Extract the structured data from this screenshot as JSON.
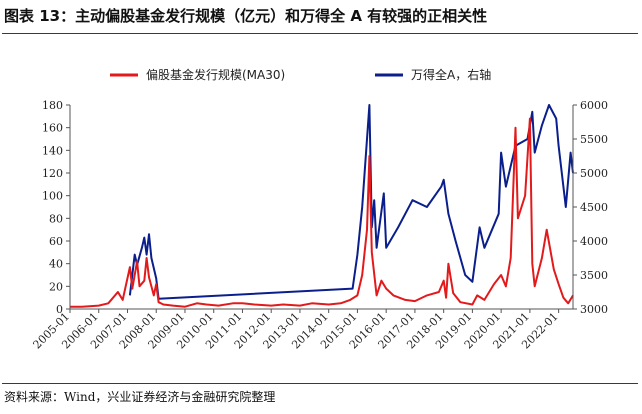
{
  "figure": {
    "title": "图表 13：主动偏股基金发行规模（亿元）和万得全 A 有较强的正相关性",
    "source": "资料来源：Wind，兴业证券经济与金融研究院整理"
  },
  "colors": {
    "red": "#e31a1c",
    "blue": "#0b1f8c",
    "rule": "#7f1d1d"
  },
  "chart_data": {
    "type": "line",
    "x_ticks": [
      "2005-01",
      "2006-01",
      "2007-01",
      "2008-01",
      "2009-01",
      "2010-01",
      "2011-01",
      "2012-01",
      "2013-01",
      "2014-01",
      "2015-01",
      "2016-01",
      "2017-01",
      "2018-01",
      "2019-01",
      "2020-01",
      "2021-01",
      "2022-01"
    ],
    "x_range": [
      "2005-01",
      "2022-07"
    ],
    "y_left": {
      "range": [
        0,
        180
      ],
      "ticks": [
        0,
        20,
        40,
        60,
        80,
        100,
        120,
        140,
        160,
        180
      ]
    },
    "y_right": {
      "range": [
        3000,
        6000
      ],
      "ticks": [
        3000,
        3500,
        4000,
        4500,
        5000,
        5500,
        6000
      ]
    },
    "legend_placement": "top",
    "grid": false,
    "series": [
      {
        "name": "偏股基金发行规模(MA30)",
        "axis": "left",
        "color": "#e31a1c",
        "points": [
          [
            "2005-01",
            2
          ],
          [
            "2005-06",
            2
          ],
          [
            "2006-01",
            3
          ],
          [
            "2006-05",
            5
          ],
          [
            "2006-09",
            15
          ],
          [
            "2006-11",
            8
          ],
          [
            "2007-02",
            37
          ],
          [
            "2007-03",
            18
          ],
          [
            "2007-05",
            42
          ],
          [
            "2007-06",
            20
          ],
          [
            "2007-08",
            25
          ],
          [
            "2007-09",
            45
          ],
          [
            "2007-10",
            28
          ],
          [
            "2007-12",
            12
          ],
          [
            "2008-01",
            22
          ],
          [
            "2008-02",
            6
          ],
          [
            "2008-04",
            4
          ],
          [
            "2008-08",
            3
          ],
          [
            "2009-01",
            2
          ],
          [
            "2009-06",
            5
          ],
          [
            "2009-10",
            4
          ],
          [
            "2010-03",
            3
          ],
          [
            "2010-09",
            5
          ],
          [
            "2011-01",
            5
          ],
          [
            "2011-06",
            4
          ],
          [
            "2012-01",
            3
          ],
          [
            "2012-06",
            4
          ],
          [
            "2013-01",
            3
          ],
          [
            "2013-06",
            5
          ],
          [
            "2014-01",
            4
          ],
          [
            "2014-06",
            5
          ],
          [
            "2014-10",
            8
          ],
          [
            "2015-01",
            12
          ],
          [
            "2015-03",
            30
          ],
          [
            "2015-05",
            70
          ],
          [
            "2015-06",
            135
          ],
          [
            "2015-07",
            50
          ],
          [
            "2015-09",
            12
          ],
          [
            "2015-11",
            25
          ],
          [
            "2016-01",
            18
          ],
          [
            "2016-04",
            12
          ],
          [
            "2016-09",
            8
          ],
          [
            "2017-01",
            7
          ],
          [
            "2017-06",
            12
          ],
          [
            "2017-11",
            15
          ],
          [
            "2018-01",
            25
          ],
          [
            "2018-02",
            10
          ],
          [
            "2018-03",
            40
          ],
          [
            "2018-05",
            14
          ],
          [
            "2018-08",
            6
          ],
          [
            "2019-01",
            4
          ],
          [
            "2019-03",
            12
          ],
          [
            "2019-06",
            8
          ],
          [
            "2019-10",
            22
          ],
          [
            "2020-01",
            30
          ],
          [
            "2020-03",
            20
          ],
          [
            "2020-05",
            45
          ],
          [
            "2020-07",
            160
          ],
          [
            "2020-08",
            80
          ],
          [
            "2020-11",
            100
          ],
          [
            "2021-01",
            168
          ],
          [
            "2021-02",
            40
          ],
          [
            "2021-03",
            20
          ],
          [
            "2021-06",
            45
          ],
          [
            "2021-08",
            70
          ],
          [
            "2021-11",
            35
          ],
          [
            "2022-01",
            22
          ],
          [
            "2022-03",
            10
          ],
          [
            "2022-05",
            5
          ],
          [
            "2022-07",
            12
          ]
        ]
      },
      {
        "name": "万得全A，右轴",
        "axis": "right",
        "color": "#0b1f8c",
        "points": [
          [
            "2007-02",
            3200
          ],
          [
            "2007-04",
            3800
          ],
          [
            "2007-05",
            3650
          ],
          [
            "2007-07",
            3900
          ],
          [
            "2007-08",
            4050
          ],
          [
            "2007-09",
            3800
          ],
          [
            "2007-10",
            4100
          ],
          [
            "2007-11",
            3750
          ],
          [
            "2008-01",
            3450
          ],
          [
            "2008-02",
            3150
          ],
          [
            "2014-11",
            3300
          ],
          [
            "2015-01",
            3800
          ],
          [
            "2015-03",
            4500
          ],
          [
            "2015-05",
            5500
          ],
          [
            "2015-06",
            6000
          ],
          [
            "2015-07",
            4200
          ],
          [
            "2015-08",
            4600
          ],
          [
            "2015-09",
            3900
          ],
          [
            "2015-12",
            4700
          ],
          [
            "2016-01",
            3900
          ],
          [
            "2016-06",
            4200
          ],
          [
            "2016-12",
            4600
          ],
          [
            "2017-06",
            4500
          ],
          [
            "2017-12",
            4800
          ],
          [
            "2018-01",
            4900
          ],
          [
            "2018-03",
            4400
          ],
          [
            "2018-06",
            4000
          ],
          [
            "2018-10",
            3500
          ],
          [
            "2019-01",
            3400
          ],
          [
            "2019-04",
            4200
          ],
          [
            "2019-06",
            3900
          ],
          [
            "2019-12",
            4400
          ],
          [
            "2020-01",
            5300
          ],
          [
            "2020-03",
            4800
          ],
          [
            "2020-07",
            5400
          ],
          [
            "2020-12",
            5500
          ],
          [
            "2021-02",
            5900
          ],
          [
            "2021-03",
            5300
          ],
          [
            "2021-06",
            5700
          ],
          [
            "2021-09",
            6000
          ],
          [
            "2021-12",
            5800
          ],
          [
            "2022-01",
            5400
          ],
          [
            "2022-04",
            4500
          ],
          [
            "2022-06",
            5300
          ],
          [
            "2022-07",
            5000
          ]
        ]
      }
    ]
  }
}
